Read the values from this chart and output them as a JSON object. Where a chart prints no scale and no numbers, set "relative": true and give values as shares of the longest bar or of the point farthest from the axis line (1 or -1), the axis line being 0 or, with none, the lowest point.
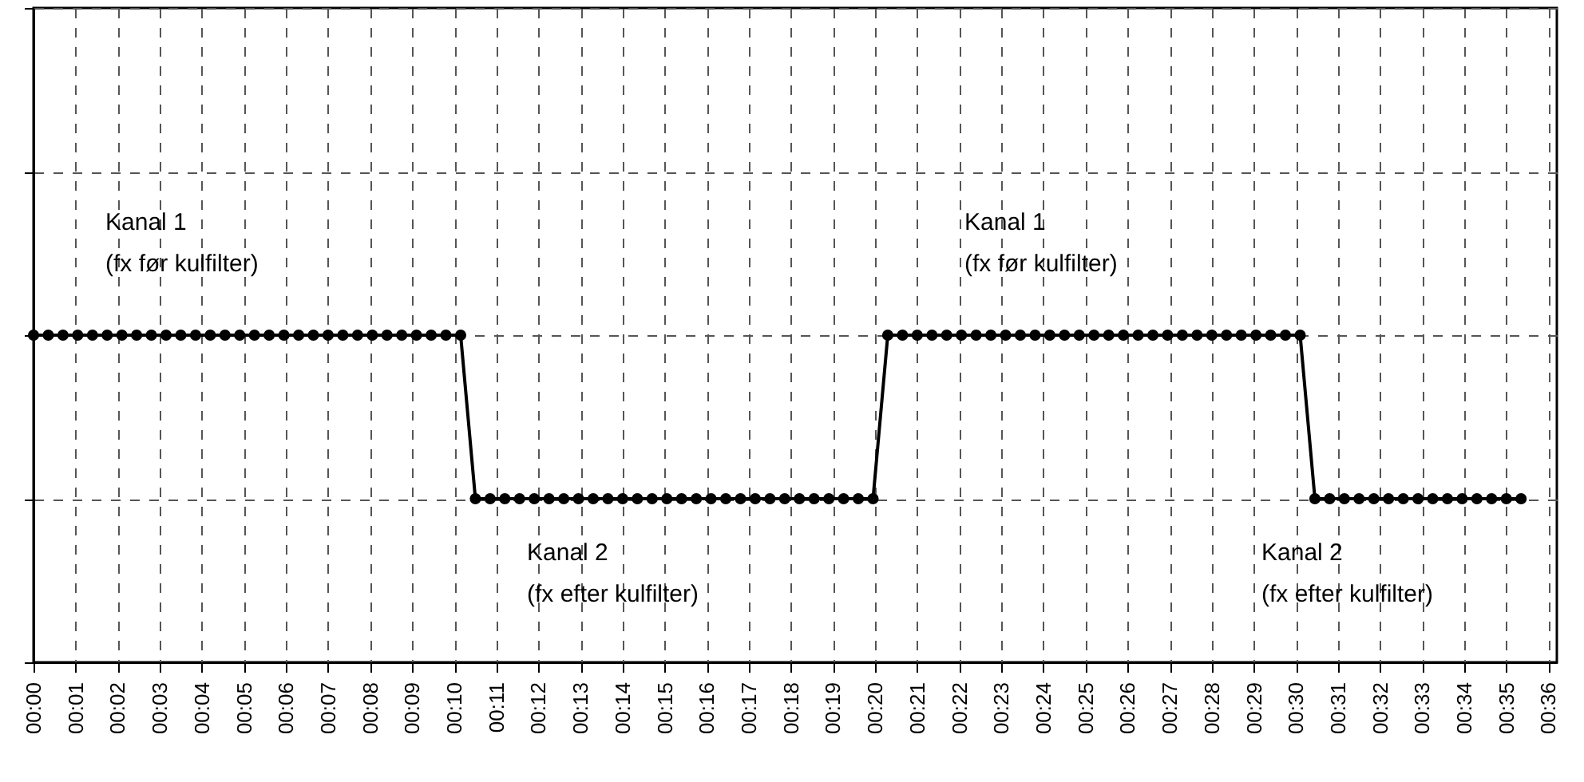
{
  "chart_data": {
    "type": "line",
    "relative": true,
    "grid": true,
    "marker": "circle",
    "line_style": "solid",
    "xlim": [
      0,
      36.2
    ],
    "xticks": [
      {
        "value": 0,
        "label": "00:00"
      },
      {
        "value": 1,
        "label": "00:01"
      },
      {
        "value": 2,
        "label": "00:02"
      },
      {
        "value": 3,
        "label": "00:03"
      },
      {
        "value": 4,
        "label": "00:04"
      },
      {
        "value": 5,
        "label": "00:05"
      },
      {
        "value": 6,
        "label": "00:06"
      },
      {
        "value": 7,
        "label": "00:07"
      },
      {
        "value": 8,
        "label": "00:08"
      },
      {
        "value": 9,
        "label": "00:09"
      },
      {
        "value": 10,
        "label": "00:10"
      },
      {
        "value": 11,
        "label": "00:11"
      },
      {
        "value": 12,
        "label": "00:12"
      },
      {
        "value": 13,
        "label": "00:13"
      },
      {
        "value": 14,
        "label": "00:14"
      },
      {
        "value": 15,
        "label": "00:15"
      },
      {
        "value": 16,
        "label": "00:16"
      },
      {
        "value": 17,
        "label": "00:17"
      },
      {
        "value": 18,
        "label": "00:18"
      },
      {
        "value": 19,
        "label": "00:19"
      },
      {
        "value": 20,
        "label": "00:20"
      },
      {
        "value": 21,
        "label": "00:21"
      },
      {
        "value": 22,
        "label": "00:22"
      },
      {
        "value": 23,
        "label": "00:23"
      },
      {
        "value": 24,
        "label": "00:24"
      },
      {
        "value": 25,
        "label": "00:25"
      },
      {
        "value": 26,
        "label": "00:26"
      },
      {
        "value": 27,
        "label": "00:27"
      },
      {
        "value": 28,
        "label": "00:28"
      },
      {
        "value": 29,
        "label": "00:29"
      },
      {
        "value": 30,
        "label": "00:30"
      },
      {
        "value": 31,
        "label": "00:31"
      },
      {
        "value": 32,
        "label": "00:32"
      },
      {
        "value": 33,
        "label": "00:33"
      },
      {
        "value": 34,
        "label": "00:34"
      },
      {
        "value": 35,
        "label": "00:35"
      },
      {
        "value": 36,
        "label": "00:36"
      }
    ],
    "x": [
      0,
      0.35,
      0.7,
      1.05,
      1.4,
      1.75,
      2.1,
      2.45,
      2.8,
      3.15,
      3.5,
      3.85,
      4.2,
      4.55,
      4.9,
      5.25,
      5.6,
      5.95,
      6.3,
      6.65,
      7,
      7.35,
      7.7,
      8.05,
      8.4,
      8.75,
      9.1,
      9.45,
      9.8,
      10.15,
      10.5,
      10.85,
      11.2,
      11.55,
      11.9,
      12.25,
      12.6,
      12.95,
      13.3,
      13.65,
      14,
      14.35,
      14.7,
      15.05,
      15.4,
      15.75,
      16.1,
      16.45,
      16.8,
      17.15,
      17.5,
      17.85,
      18.2,
      18.55,
      18.9,
      19.25,
      19.6,
      19.95,
      20.3,
      20.65,
      21,
      21.35,
      21.7,
      22.05,
      22.4,
      22.75,
      23.1,
      23.45,
      23.8,
      24.15,
      24.5,
      24.85,
      25.2,
      25.55,
      25.9,
      26.25,
      26.6,
      26.95,
      27.3,
      27.65,
      28,
      28.35,
      28.7,
      29.05,
      29.4,
      29.75,
      30.1,
      30.45,
      30.8,
      31.15,
      31.5,
      31.85,
      32.2,
      32.55,
      32.9,
      33.25,
      33.6,
      33.95,
      34.3,
      34.65,
      35,
      35.35
    ],
    "series": [
      {
        "color": "#000000",
        "values": [
          1,
          1,
          1,
          1,
          1,
          1,
          1,
          1,
          1,
          1,
          1,
          1,
          1,
          1,
          1,
          1,
          1,
          1,
          1,
          1,
          1,
          1,
          1,
          1,
          1,
          1,
          1,
          1,
          1,
          1,
          0.5,
          0.5,
          0.5,
          0.5,
          0.5,
          0.5,
          0.5,
          0.5,
          0.5,
          0.5,
          0.5,
          0.5,
          0.5,
          0.5,
          0.5,
          0.5,
          0.5,
          0.5,
          0.5,
          0.5,
          0.5,
          0.5,
          0.5,
          0.5,
          0.5,
          0.5,
          0.5,
          0.5,
          1,
          1,
          1,
          1,
          1,
          1,
          1,
          1,
          1,
          1,
          1,
          1,
          1,
          1,
          1,
          1,
          1,
          1,
          1,
          1,
          1,
          1,
          1,
          1,
          1,
          1,
          1,
          1,
          1,
          0.5,
          0.5,
          0.5,
          0.5,
          0.5,
          0.5,
          0.5,
          0.5,
          0.5,
          0.5,
          0.5,
          0.5,
          0.5,
          0.5,
          0.5
        ]
      }
    ],
    "annotations": [
      "Kanal 1\n(fx før kulfilter)",
      "Kanal 2\n(fx efter kulfilter)",
      "Kanal 1\n(fx før kulfilter)",
      "Kanal 2\n(fx efter kulfilter)"
    ]
  }
}
